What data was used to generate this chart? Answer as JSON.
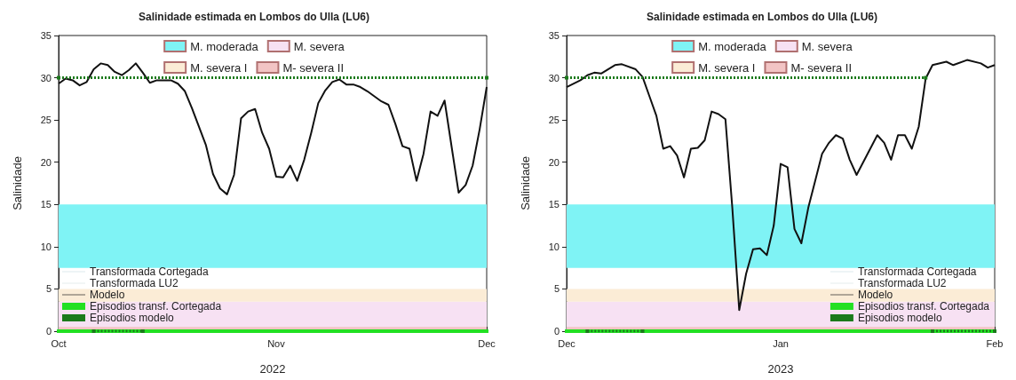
{
  "chart_data": [
    {
      "type": "line",
      "title": "Salinidade estimada en Lombos do Ulla (LU6)",
      "xlabel": "2022",
      "ylabel": "Salinidade",
      "xlim": [
        "2022-10-01",
        "2022-12-01"
      ],
      "xticks": [
        {
          "value": "2022-10-01",
          "label": "Oct"
        },
        {
          "value": "2022-11-01",
          "label": "Nov"
        },
        {
          "value": "2022-12-01",
          "label": "Dec"
        }
      ],
      "ylim": [
        0,
        35
      ],
      "yticks": [
        0,
        5,
        10,
        15,
        20,
        25,
        30,
        35
      ],
      "grid": false,
      "legend": "left",
      "marker": "none",
      "bands": [
        {
          "axis": "y",
          "from": 7.5,
          "to": 15,
          "label": "M. moderada",
          "color": "#7ff3f5"
        },
        {
          "axis": "y",
          "from": 0,
          "to": 3.5,
          "label": "M. severa",
          "color": "#f7e1f3"
        },
        {
          "axis": "y",
          "from": 3.5,
          "to": 5,
          "label": "M. severa I",
          "color": "#fbecd6"
        },
        {
          "axis": "y",
          "from": 0,
          "to": 0.5,
          "label": "M- severa II",
          "color": "#f2c4c4"
        }
      ],
      "series": [
        {
          "name": "Transformada Cortegada",
          "color": "#c9dbe3",
          "line_style": "solid"
        },
        {
          "name": "Transformada LU2",
          "color": "#d6e3e3",
          "line_style": "solid"
        },
        {
          "name": "Modelo",
          "color": "#111111",
          "line_style": "solid",
          "x": [
            "2022-10-01",
            "2022-10-02",
            "2022-10-03",
            "2022-10-04",
            "2022-10-05",
            "2022-10-06",
            "2022-10-07",
            "2022-10-08",
            "2022-10-09",
            "2022-10-10",
            "2022-10-11",
            "2022-10-12",
            "2022-10-13",
            "2022-10-14",
            "2022-10-15",
            "2022-10-17",
            "2022-10-18",
            "2022-10-19",
            "2022-10-20",
            "2022-10-22",
            "2022-10-23",
            "2022-10-24",
            "2022-10-25",
            "2022-10-26",
            "2022-10-27",
            "2022-10-28",
            "2022-10-29",
            "2022-10-30",
            "2022-10-31",
            "2022-11-01",
            "2022-11-02",
            "2022-11-03",
            "2022-11-04",
            "2022-11-05",
            "2022-11-06",
            "2022-11-07",
            "2022-11-08",
            "2022-11-09",
            "2022-11-10",
            "2022-11-11",
            "2022-11-12",
            "2022-11-13",
            "2022-11-14",
            "2022-11-15",
            "2022-11-16",
            "2022-11-17",
            "2022-11-18",
            "2022-11-19",
            "2022-11-20",
            "2022-11-21",
            "2022-11-22",
            "2022-11-23",
            "2022-11-24",
            "2022-11-25",
            "2022-11-27",
            "2022-11-28",
            "2022-11-29",
            "2022-11-30",
            "2022-12-01"
          ],
          "values": [
            29.3,
            29.9,
            29.7,
            29.1,
            29.5,
            31.0,
            31.7,
            31.5,
            30.7,
            30.3,
            30.9,
            31.7,
            30.6,
            29.4,
            29.7,
            29.7,
            29.3,
            28.4,
            26.4,
            22.0,
            18.6,
            16.9,
            16.2,
            18.5,
            25.2,
            26.0,
            26.3,
            23.5,
            21.6,
            18.3,
            18.2,
            19.6,
            17.8,
            20.3,
            23.5,
            27.0,
            28.5,
            29.5,
            29.8,
            29.2,
            29.2,
            28.9,
            28.4,
            27.8,
            27.2,
            26.8,
            24.5,
            21.9,
            21.6,
            17.8,
            21.0,
            26.0,
            25.5,
            27.3,
            16.4,
            17.3,
            19.6,
            23.9,
            28.9
          ]
        },
        {
          "name": "Episodios transf. Cortegada",
          "color": "#22e022",
          "line_style": "solid",
          "marker": "square",
          "x": [
            "2022-10-01",
            "2022-12-01"
          ],
          "values": [
            0,
            0
          ]
        },
        {
          "name": "Episodios modelo",
          "color": "#1b7a1b",
          "line_style": "dotted",
          "marker": "square",
          "x": [
            "2022-10-01",
            "2022-12-01"
          ],
          "values": [
            30,
            30
          ]
        },
        {
          "color": "#1b7a1b",
          "line_style": "dotted",
          "marker": "square",
          "x": [
            "2022-10-06",
            "2022-10-13"
          ],
          "values": [
            0,
            0
          ]
        }
      ]
    },
    {
      "type": "line",
      "title": "Salinidade estimada en Lombos do Ulla (LU6)",
      "xlabel": "2023",
      "ylabel": "Salinidade",
      "xlim": [
        "2022-12-01",
        "2023-02-01"
      ],
      "xticks": [
        {
          "value": "2022-12-01",
          "label": "Dec"
        },
        {
          "value": "2023-01-01",
          "label": "Jan"
        },
        {
          "value": "2023-02-01",
          "label": "Feb"
        }
      ],
      "ylim": [
        0,
        35
      ],
      "yticks": [
        0,
        5,
        10,
        15,
        20,
        25,
        30,
        35
      ],
      "grid": false,
      "legend": "right",
      "marker": "none",
      "bands": [
        {
          "axis": "y",
          "from": 7.5,
          "to": 15,
          "label": "M. moderada",
          "color": "#7ff3f5"
        },
        {
          "axis": "y",
          "from": 0,
          "to": 3.5,
          "label": "M. severa",
          "color": "#f7e1f3"
        },
        {
          "axis": "y",
          "from": 3.5,
          "to": 5,
          "label": "M. severa I",
          "color": "#fbecd6"
        },
        {
          "axis": "y",
          "from": 0,
          "to": 0.5,
          "label": "M- severa II",
          "color": "#f2c4c4"
        }
      ],
      "series": [
        {
          "name": "Transformada Cortegada",
          "color": "#c9dbe3",
          "line_style": "solid"
        },
        {
          "name": "Transformada LU2",
          "color": "#d6e3e3",
          "line_style": "solid"
        },
        {
          "name": "Modelo",
          "color": "#111111",
          "line_style": "solid",
          "x": [
            "2022-12-01",
            "2022-12-03",
            "2022-12-04",
            "2022-12-05",
            "2022-12-06",
            "2022-12-08",
            "2022-12-09",
            "2022-12-11",
            "2022-12-12",
            "2022-12-13",
            "2022-12-14",
            "2022-12-15",
            "2022-12-16",
            "2022-12-17",
            "2022-12-18",
            "2022-12-19",
            "2022-12-20",
            "2022-12-21",
            "2022-12-22",
            "2022-12-23",
            "2022-12-24",
            "2022-12-25",
            "2022-12-26",
            "2022-12-27",
            "2022-12-28",
            "2022-12-29",
            "2022-12-30",
            "2022-12-31",
            "2023-01-01",
            "2023-01-02",
            "2023-01-03",
            "2023-01-04",
            "2023-01-05",
            "2023-01-06",
            "2023-01-07",
            "2023-01-08",
            "2023-01-09",
            "2023-01-10",
            "2023-01-11",
            "2023-01-12",
            "2023-01-15",
            "2023-01-16",
            "2023-01-17",
            "2023-01-18",
            "2023-01-19",
            "2023-01-20",
            "2023-01-21",
            "2023-01-22",
            "2023-01-23",
            "2023-01-25",
            "2023-01-26",
            "2023-01-28",
            "2023-01-30",
            "2023-01-31",
            "2023-02-01"
          ],
          "values": [
            28.9,
            29.7,
            30.3,
            30.6,
            30.5,
            31.5,
            31.6,
            31.0,
            30.1,
            27.8,
            25.5,
            21.6,
            21.9,
            20.8,
            18.2,
            21.6,
            21.7,
            22.6,
            26.0,
            25.7,
            25.1,
            14.6,
            2.5,
            6.8,
            9.7,
            9.8,
            9.0,
            12.5,
            19.8,
            19.4,
            12.1,
            10.4,
            14.6,
            17.8,
            21.0,
            22.3,
            23.2,
            22.8,
            20.3,
            18.5,
            23.2,
            22.3,
            20.3,
            23.2,
            23.2,
            21.6,
            24.2,
            29.9,
            31.5,
            31.9,
            31.5,
            32.1,
            31.7,
            31.2,
            31.5
          ]
        },
        {
          "name": "Episodios transf. Cortegada",
          "color": "#22e022",
          "line_style": "solid",
          "marker": "square",
          "x": [
            "2022-12-01",
            "2023-02-01"
          ],
          "values": [
            0,
            0
          ]
        },
        {
          "name": "Episodios modelo",
          "color": "#1b7a1b",
          "line_style": "dotted",
          "marker": "square",
          "x": [
            "2022-12-01",
            "2023-01-22"
          ],
          "values": [
            30,
            30
          ]
        },
        {
          "color": "#1b7a1b",
          "line_style": "dotted",
          "marker": "square",
          "x": [
            "2022-12-04",
            "2022-12-12"
          ],
          "values": [
            0,
            0
          ]
        },
        {
          "color": "#1b7a1b",
          "line_style": "dotted",
          "marker": "square",
          "x": [
            "2023-01-23",
            "2023-02-01"
          ],
          "values": [
            0,
            0
          ]
        }
      ]
    }
  ]
}
